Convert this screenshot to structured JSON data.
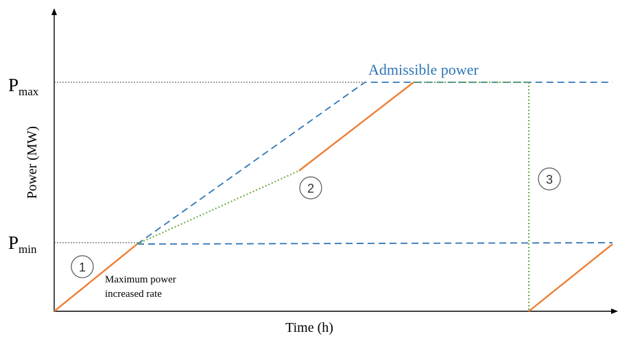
{
  "axes": {
    "xlabel": "Time (h)",
    "ylabel": "Power (MW)"
  },
  "ticks": {
    "pmax": {
      "base": "P",
      "sub": "max"
    },
    "pmin": {
      "base": "P",
      "sub": "min"
    }
  },
  "labels": {
    "admissible_power": "Admissible power",
    "ramp_note_line1": "Maximum power",
    "ramp_note_line2": "increased rate"
  },
  "markers": [
    {
      "id": "1",
      "text": "1"
    },
    {
      "id": "2",
      "text": "2"
    },
    {
      "id": "3",
      "text": "3"
    }
  ],
  "colors": {
    "admissible": "#2e75b6",
    "actual": "#ed7d31",
    "transition": "#70ad47",
    "reference": "#404040",
    "axis": "#000000"
  }
}
